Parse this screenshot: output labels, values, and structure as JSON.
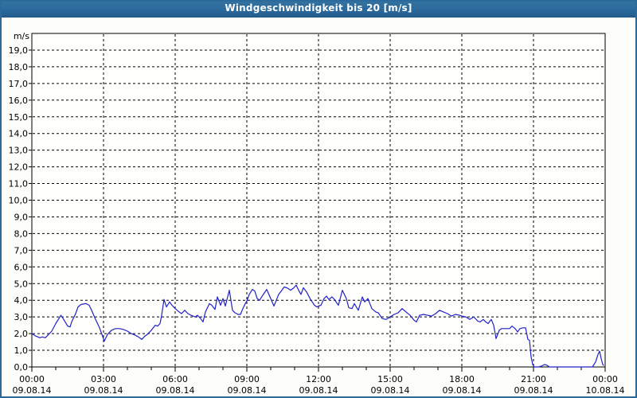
{
  "window": {
    "title": "Windgeschwindigkeit bis 20 [m/s]"
  },
  "colors": {
    "frame": "#2b6a9c",
    "titlebar": "#2b6a9c",
    "title_text": "#ffffff",
    "page_background": "#fdfdfa",
    "plot_background": "#fefefc",
    "grid": "#000000",
    "axis": "#000000",
    "text": "#000000",
    "line": "#2121c8"
  },
  "chart_data": {
    "type": "line",
    "title": "Windgeschwindigkeit bis 20 [m/s]",
    "y_axis_unit": "m/s",
    "ylim": [
      0,
      20
    ],
    "y_tick_step": 1.0,
    "y_tick_labels": [
      "0,0",
      "1,0",
      "2,0",
      "3,0",
      "4,0",
      "5,0",
      "6,0",
      "7,0",
      "8,0",
      "9,0",
      "10,0",
      "11,0",
      "12,0",
      "13,0",
      "14,0",
      "15,0",
      "16,0",
      "17,0",
      "18,0",
      "19,0"
    ],
    "xlim_minutes": [
      0,
      1440
    ],
    "x_minor_tick_minutes": 60,
    "x_major_ticks": [
      {
        "minute": 0,
        "time": "00:00",
        "date": "09.08.14"
      },
      {
        "minute": 180,
        "time": "03:00",
        "date": "09.08.14"
      },
      {
        "minute": 360,
        "time": "06:00",
        "date": "09.08.14"
      },
      {
        "minute": 540,
        "time": "09:00",
        "date": "09.08.14"
      },
      {
        "minute": 720,
        "time": "12:00",
        "date": "09.08.14"
      },
      {
        "minute": 900,
        "time": "15:00",
        "date": "09.08.14"
      },
      {
        "minute": 1080,
        "time": "18:00",
        "date": "09.08.14"
      },
      {
        "minute": 1260,
        "time": "21:00",
        "date": "09.08.14"
      },
      {
        "minute": 1440,
        "time": "00:00",
        "date": "10.08.14"
      }
    ],
    "grid": "dashed",
    "legend": "none",
    "series": [
      {
        "name": "Windgeschwindigkeit",
        "points_minute_value": [
          [
            0,
            2.0
          ],
          [
            10,
            1.85
          ],
          [
            20,
            1.75
          ],
          [
            26,
            1.8
          ],
          [
            34,
            1.75
          ],
          [
            40,
            1.9
          ],
          [
            50,
            2.15
          ],
          [
            60,
            2.6
          ],
          [
            73,
            3.1
          ],
          [
            80,
            2.85
          ],
          [
            90,
            2.45
          ],
          [
            96,
            2.4
          ],
          [
            100,
            2.7
          ],
          [
            110,
            3.2
          ],
          [
            116,
            3.6
          ],
          [
            124,
            3.75
          ],
          [
            136,
            3.8
          ],
          [
            144,
            3.7
          ],
          [
            150,
            3.4
          ],
          [
            160,
            2.85
          ],
          [
            170,
            2.35
          ],
          [
            176,
            1.95
          ],
          [
            182,
            1.55
          ],
          [
            190,
            1.95
          ],
          [
            200,
            2.2
          ],
          [
            210,
            2.3
          ],
          [
            220,
            2.3
          ],
          [
            230,
            2.25
          ],
          [
            240,
            2.15
          ],
          [
            250,
            2.0
          ],
          [
            260,
            1.9
          ],
          [
            268,
            1.8
          ],
          [
            276,
            1.65
          ],
          [
            284,
            1.85
          ],
          [
            290,
            1.95
          ],
          [
            300,
            2.2
          ],
          [
            310,
            2.5
          ],
          [
            316,
            2.45
          ],
          [
            322,
            2.6
          ],
          [
            326,
            3.1
          ],
          [
            332,
            4.05
          ],
          [
            338,
            3.6
          ],
          [
            346,
            3.9
          ],
          [
            352,
            3.7
          ],
          [
            360,
            3.5
          ],
          [
            370,
            3.3
          ],
          [
            376,
            3.2
          ],
          [
            384,
            3.4
          ],
          [
            392,
            3.2
          ],
          [
            400,
            3.1
          ],
          [
            410,
            3.0
          ],
          [
            416,
            3.1
          ],
          [
            424,
            2.9
          ],
          [
            430,
            2.7
          ],
          [
            436,
            3.3
          ],
          [
            446,
            3.8
          ],
          [
            452,
            3.7
          ],
          [
            460,
            3.45
          ],
          [
            466,
            4.2
          ],
          [
            474,
            3.7
          ],
          [
            480,
            4.1
          ],
          [
            486,
            3.65
          ],
          [
            496,
            4.6
          ],
          [
            504,
            3.4
          ],
          [
            510,
            3.25
          ],
          [
            518,
            3.15
          ],
          [
            524,
            3.15
          ],
          [
            530,
            3.5
          ],
          [
            536,
            3.8
          ],
          [
            540,
            3.95
          ],
          [
            546,
            4.35
          ],
          [
            554,
            4.65
          ],
          [
            560,
            4.55
          ],
          [
            566,
            4.1
          ],
          [
            572,
            4.0
          ],
          [
            580,
            4.3
          ],
          [
            590,
            4.65
          ],
          [
            600,
            4.1
          ],
          [
            608,
            3.65
          ],
          [
            614,
            4.0
          ],
          [
            620,
            4.35
          ],
          [
            628,
            4.6
          ],
          [
            634,
            4.8
          ],
          [
            640,
            4.75
          ],
          [
            644,
            4.7
          ],
          [
            650,
            4.6
          ],
          [
            658,
            4.75
          ],
          [
            664,
            4.9
          ],
          [
            670,
            4.6
          ],
          [
            676,
            4.35
          ],
          [
            682,
            4.75
          ],
          [
            690,
            4.5
          ],
          [
            700,
            4.05
          ],
          [
            710,
            3.7
          ],
          [
            716,
            3.6
          ],
          [
            720,
            3.65
          ],
          [
            726,
            3.7
          ],
          [
            734,
            4.1
          ],
          [
            740,
            4.25
          ],
          [
            746,
            4.05
          ],
          [
            754,
            4.2
          ],
          [
            760,
            4.05
          ],
          [
            770,
            3.7
          ],
          [
            780,
            4.6
          ],
          [
            790,
            4.1
          ],
          [
            796,
            3.55
          ],
          [
            804,
            3.5
          ],
          [
            810,
            3.8
          ],
          [
            820,
            3.4
          ],
          [
            830,
            4.2
          ],
          [
            836,
            3.9
          ],
          [
            844,
            4.1
          ],
          [
            854,
            3.5
          ],
          [
            864,
            3.3
          ],
          [
            870,
            3.25
          ],
          [
            880,
            2.9
          ],
          [
            890,
            2.85
          ],
          [
            900,
            3.0
          ],
          [
            910,
            3.15
          ],
          [
            920,
            3.25
          ],
          [
            930,
            3.5
          ],
          [
            940,
            3.3
          ],
          [
            950,
            3.1
          ],
          [
            960,
            2.8
          ],
          [
            966,
            2.7
          ],
          [
            974,
            3.1
          ],
          [
            984,
            3.15
          ],
          [
            994,
            3.1
          ],
          [
            1004,
            3.05
          ],
          [
            1014,
            3.2
          ],
          [
            1024,
            3.4
          ],
          [
            1034,
            3.3
          ],
          [
            1044,
            3.2
          ],
          [
            1054,
            3.05
          ],
          [
            1064,
            3.15
          ],
          [
            1074,
            3.1
          ],
          [
            1080,
            3.05
          ],
          [
            1090,
            3.0
          ],
          [
            1100,
            2.85
          ],
          [
            1110,
            3.0
          ],
          [
            1120,
            2.75
          ],
          [
            1126,
            2.7
          ],
          [
            1134,
            2.85
          ],
          [
            1140,
            2.7
          ],
          [
            1146,
            2.6
          ],
          [
            1154,
            2.85
          ],
          [
            1160,
            2.5
          ],
          [
            1166,
            1.7
          ],
          [
            1174,
            2.2
          ],
          [
            1180,
            2.3
          ],
          [
            1190,
            2.3
          ],
          [
            1200,
            2.3
          ],
          [
            1206,
            2.45
          ],
          [
            1214,
            2.3
          ],
          [
            1220,
            2.1
          ],
          [
            1226,
            2.3
          ],
          [
            1234,
            2.35
          ],
          [
            1240,
            2.35
          ],
          [
            1246,
            1.65
          ],
          [
            1250,
            1.6
          ],
          [
            1254,
            0.6
          ],
          [
            1258,
            0.15
          ],
          [
            1262,
            0.0
          ],
          [
            1272,
            0.0
          ],
          [
            1280,
            0.05
          ],
          [
            1288,
            0.15
          ],
          [
            1294,
            0.1
          ],
          [
            1300,
            0.0
          ],
          [
            1330,
            0.0
          ],
          [
            1360,
            0.0
          ],
          [
            1390,
            0.0
          ],
          [
            1408,
            0.0
          ],
          [
            1416,
            0.3
          ],
          [
            1422,
            0.75
          ],
          [
            1426,
            0.95
          ],
          [
            1430,
            0.5
          ],
          [
            1434,
            0.15
          ],
          [
            1436,
            0.1
          ]
        ]
      }
    ]
  }
}
